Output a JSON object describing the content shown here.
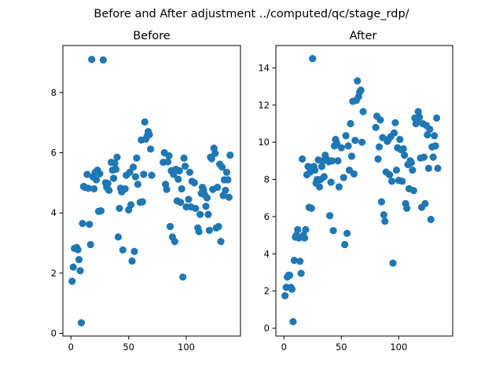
{
  "figure": {
    "suptitle": "Before and After adjustment ../computed/qc/stage_rdp/"
  },
  "style": {
    "marker_color": "#1f77b4",
    "axes_color": "#000000",
    "background": "#ffffff"
  },
  "chart_data": [
    {
      "type": "scatter",
      "title": "Before",
      "xlabel": "",
      "ylabel": "",
      "xlim": [
        -7,
        147
      ],
      "ylim": [
        -0.09,
        9.56
      ],
      "xticks": [
        0,
        50,
        100
      ],
      "yticks": [
        0,
        2,
        4,
        6,
        8
      ],
      "grid": false,
      "series": [
        {
          "points": [
            [
              1,
              1.73
            ],
            [
              2,
              2.2
            ],
            [
              3,
              2.82
            ],
            [
              5,
              2.85
            ],
            [
              6,
              2.78
            ],
            [
              7,
              2.45
            ],
            [
              8,
              2.08
            ],
            [
              9,
              0.35
            ],
            [
              10,
              3.65
            ],
            [
              11,
              4.88
            ],
            [
              12,
              4.85
            ],
            [
              14,
              5.28
            ],
            [
              15,
              4.82
            ],
            [
              16,
              3.62
            ],
            [
              17,
              2.95
            ],
            [
              18,
              9.1
            ],
            [
              19,
              5.2
            ],
            [
              20,
              4.8
            ],
            [
              21,
              5.35
            ],
            [
              22,
              5.1
            ],
            [
              23,
              5.42
            ],
            [
              24,
              4.05
            ],
            [
              25,
              5.3
            ],
            [
              26,
              4.07
            ],
            [
              28,
              9.08
            ],
            [
              30,
              5.0
            ],
            [
              31,
              4.85
            ],
            [
              32,
              4.98
            ],
            [
              33,
              4.75
            ],
            [
              35,
              5.68
            ],
            [
              36,
              5.42
            ],
            [
              37,
              5.15
            ],
            [
              38,
              5.65
            ],
            [
              39,
              5.45
            ],
            [
              40,
              5.85
            ],
            [
              41,
              3.2
            ],
            [
              42,
              4.15
            ],
            [
              43,
              4.82
            ],
            [
              44,
              4.7
            ],
            [
              45,
              2.77
            ],
            [
              47,
              4.8
            ],
            [
              48,
              5.25
            ],
            [
              50,
              4.1
            ],
            [
              51,
              5.35
            ],
            [
              52,
              4.27
            ],
            [
              53,
              2.4
            ],
            [
              54,
              5.52
            ],
            [
              55,
              2.72
            ],
            [
              56,
              5.2
            ],
            [
              57,
              5.82
            ],
            [
              58,
              4.95
            ],
            [
              60,
              4.35
            ],
            [
              61,
              6.42
            ],
            [
              62,
              4.37
            ],
            [
              63,
              5.28
            ],
            [
              64,
              7.02
            ],
            [
              65,
              6.45
            ],
            [
              66,
              6.55
            ],
            [
              67,
              6.7
            ],
            [
              68,
              6.6
            ],
            [
              69,
              6.12
            ],
            [
              70,
              5.25
            ],
            [
              80,
              5.68
            ],
            [
              81,
              6.0
            ],
            [
              82,
              4.95
            ],
            [
              83,
              4.78
            ],
            [
              84,
              5.7
            ],
            [
              85,
              5.9
            ],
            [
              86,
              3.55
            ],
            [
              87,
              5.4
            ],
            [
              88,
              3.2
            ],
            [
              89,
              5.28
            ],
            [
              90,
              3.05
            ],
            [
              91,
              5.45
            ],
            [
              92,
              4.4
            ],
            [
              93,
              5.12
            ],
            [
              94,
              5.4
            ],
            [
              95,
              4.35
            ],
            [
              96,
              4.8
            ],
            [
              97,
              1.87
            ],
            [
              98,
              5.82
            ],
            [
              99,
              5.55
            ],
            [
              100,
              4.2
            ],
            [
              102,
              4.45
            ],
            [
              103,
              5.35
            ],
            [
              104,
              4.2
            ],
            [
              105,
              5.05
            ],
            [
              107,
              5.0
            ],
            [
              108,
              4.15
            ],
            [
              110,
              3.5
            ],
            [
              111,
              3.38
            ],
            [
              112,
              3.95
            ],
            [
              113,
              4.65
            ],
            [
              114,
              4.85
            ],
            [
              115,
              4.75
            ],
            [
              116,
              4.6
            ],
            [
              117,
              4.22
            ],
            [
              118,
              4.5
            ],
            [
              119,
              3.95
            ],
            [
              120,
              3.42
            ],
            [
              121,
              5.85
            ],
            [
              122,
              5.8
            ],
            [
              123,
              4.78
            ],
            [
              124,
              6.15
            ],
            [
              125,
              5.98
            ],
            [
              126,
              3.5
            ],
            [
              127,
              4.85
            ],
            [
              128,
              3.55
            ],
            [
              129,
              5.62
            ],
            [
              130,
              3.05
            ],
            [
              131,
              5.52
            ],
            [
              132,
              4.58
            ],
            [
              133,
              5.1
            ],
            [
              134,
              4.75
            ],
            [
              135,
              5.35
            ],
            [
              136,
              5.1
            ],
            [
              137,
              4.52
            ],
            [
              138,
              5.92
            ]
          ]
        }
      ]
    },
    {
      "type": "scatter",
      "title": "After",
      "xlabel": "",
      "ylabel": "",
      "xlim": [
        -7,
        147
      ],
      "ylim": [
        -0.42,
        15.2
      ],
      "xticks": [
        0,
        50,
        100
      ],
      "yticks": [
        0,
        2,
        4,
        6,
        8,
        10,
        12,
        14
      ],
      "grid": false,
      "series": [
        {
          "points": [
            [
              1,
              1.75
            ],
            [
              2,
              2.2
            ],
            [
              3,
              2.75
            ],
            [
              4,
              2.85
            ],
            [
              5,
              2.85
            ],
            [
              6,
              2.2
            ],
            [
              7,
              2.1
            ],
            [
              8,
              0.35
            ],
            [
              9,
              3.65
            ],
            [
              10,
              4.9
            ],
            [
              11,
              5.0
            ],
            [
              12,
              5.3
            ],
            [
              13,
              4.85
            ],
            [
              14,
              3.6
            ],
            [
              15,
              2.95
            ],
            [
              16,
              9.1
            ],
            [
              17,
              5.0
            ],
            [
              18,
              4.85
            ],
            [
              19,
              5.3
            ],
            [
              20,
              8.25
            ],
            [
              21,
              8.7
            ],
            [
              22,
              6.5
            ],
            [
              23,
              8.4
            ],
            [
              24,
              6.45
            ],
            [
              25,
              14.5
            ],
            [
              26,
              8.7
            ],
            [
              27,
              8.5
            ],
            [
              28,
              7.8
            ],
            [
              29,
              8.0
            ],
            [
              30,
              9.05
            ],
            [
              31,
              7.6
            ],
            [
              32,
              8.0
            ],
            [
              33,
              8.7
            ],
            [
              34,
              9.0
            ],
            [
              35,
              8.15
            ],
            [
              36,
              9.3
            ],
            [
              37,
              9.05
            ],
            [
              38,
              9.05
            ],
            [
              39,
              8.95
            ],
            [
              40,
              6.05
            ],
            [
              41,
              7.85
            ],
            [
              42,
              9.0
            ],
            [
              43,
              5.25
            ],
            [
              44,
              9.8
            ],
            [
              45,
              10.15
            ],
            [
              46,
              9.95
            ],
            [
              47,
              9.0
            ],
            [
              48,
              7.6
            ],
            [
              50,
              9.7
            ],
            [
              52,
              8.1
            ],
            [
              53,
              4.5
            ],
            [
              54,
              10.35
            ],
            [
              55,
              5.1
            ],
            [
              56,
              9.8
            ],
            [
              57,
              8.5
            ],
            [
              58,
              11.0
            ],
            [
              59,
              9.25
            ],
            [
              60,
              12.2
            ],
            [
              61,
              8.3
            ],
            [
              62,
              10.1
            ],
            [
              63,
              12.25
            ],
            [
              64,
              13.3
            ],
            [
              65,
              12.45
            ],
            [
              66,
              12.7
            ],
            [
              67,
              12.8
            ],
            [
              68,
              10.0
            ],
            [
              69,
              11.65
            ],
            [
              80,
              10.8
            ],
            [
              81,
              11.4
            ],
            [
              82,
              9.1
            ],
            [
              83,
              9.75
            ],
            [
              84,
              11.2
            ],
            [
              85,
              6.8
            ],
            [
              86,
              10.25
            ],
            [
              87,
              6.1
            ],
            [
              88,
              5.75
            ],
            [
              89,
              8.4
            ],
            [
              90,
              10.05
            ],
            [
              91,
              10.15
            ],
            [
              92,
              8.25
            ],
            [
              93,
              10.3
            ],
            [
              94,
              7.9
            ],
            [
              95,
              3.5
            ],
            [
              96,
              10.5
            ],
            [
              97,
              11.05
            ],
            [
              98,
              8.5
            ],
            [
              99,
              9.7
            ],
            [
              100,
              7.95
            ],
            [
              101,
              10.15
            ],
            [
              102,
              9.6
            ],
            [
              103,
              7.9
            ],
            [
              104,
              9.65
            ],
            [
              105,
              9.3
            ],
            [
              106,
              6.7
            ],
            [
              107,
              6.45
            ],
            [
              108,
              8.8
            ],
            [
              109,
              7.5
            ],
            [
              110,
              9.0
            ],
            [
              111,
              8.9
            ],
            [
              112,
              8.5
            ],
            [
              113,
              7.4
            ],
            [
              114,
              11.3
            ],
            [
              115,
              11.0
            ],
            [
              116,
              11.2
            ],
            [
              117,
              11.65
            ],
            [
              118,
              11.35
            ],
            [
              119,
              9.15
            ],
            [
              120,
              6.5
            ],
            [
              121,
              11.0
            ],
            [
              122,
              9.2
            ],
            [
              123,
              6.7
            ],
            [
              124,
              10.9
            ],
            [
              125,
              10.4
            ],
            [
              126,
              8.6
            ],
            [
              127,
              10.7
            ],
            [
              128,
              5.85
            ],
            [
              129,
              9.75
            ],
            [
              130,
              9.2
            ],
            [
              131,
              10.35
            ],
            [
              132,
              9.8
            ],
            [
              133,
              11.3
            ],
            [
              134,
              8.6
            ]
          ]
        }
      ]
    }
  ]
}
